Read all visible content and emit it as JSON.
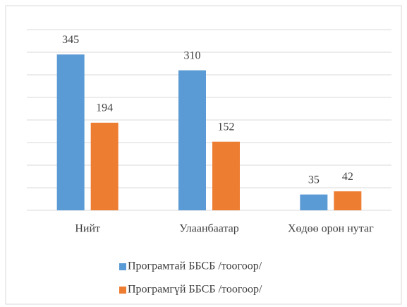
{
  "chart_data": {
    "type": "bar",
    "categories": [
      "Нийт",
      "Улаанбаатар",
      "Хөдөө орон нутаг"
    ],
    "series": [
      {
        "name": "Програмтай ББСБ /тоогоор/",
        "color": "#5b9bd5",
        "values": [
          345,
          310,
          35
        ]
      },
      {
        "name": "Програмгүй ББСБ /тоогоор/",
        "color": "#ed7d31",
        "values": [
          194,
          152,
          42
        ]
      }
    ],
    "ylim": [
      0,
      400
    ],
    "yticks": [
      0,
      50,
      100,
      150,
      200,
      250,
      300,
      350,
      400
    ],
    "grid": true,
    "legend": "bottom"
  }
}
